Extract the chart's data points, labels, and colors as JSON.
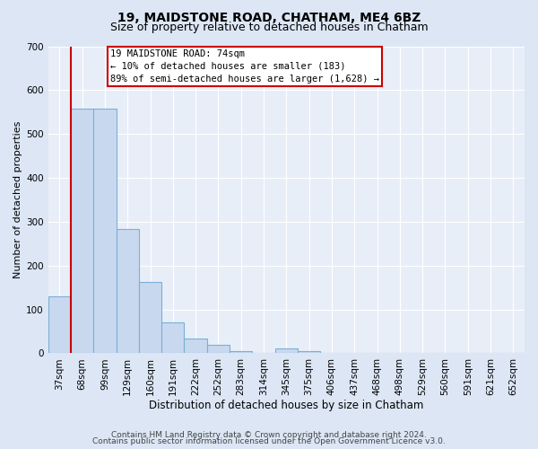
{
  "title": "19, MAIDSTONE ROAD, CHATHAM, ME4 6BZ",
  "subtitle": "Size of property relative to detached houses in Chatham",
  "xlabel": "Distribution of detached houses by size in Chatham",
  "ylabel": "Number of detached properties",
  "bar_labels": [
    "37sqm",
    "68sqm",
    "99sqm",
    "129sqm",
    "160sqm",
    "191sqm",
    "222sqm",
    "252sqm",
    "283sqm",
    "314sqm",
    "345sqm",
    "375sqm",
    "406sqm",
    "437sqm",
    "468sqm",
    "498sqm",
    "529sqm",
    "560sqm",
    "591sqm",
    "621sqm",
    "652sqm"
  ],
  "bar_values": [
    130,
    557,
    557,
    283,
    163,
    70,
    33,
    20,
    5,
    0,
    10,
    5,
    0,
    0,
    0,
    0,
    0,
    0,
    0,
    0,
    0
  ],
  "bar_color": "#c8d9ef",
  "bar_edge_color": "#7bafd4",
  "vline_x_index": 0.5,
  "vline_color": "#cc0000",
  "ylim": [
    0,
    700
  ],
  "yticks": [
    0,
    100,
    200,
    300,
    400,
    500,
    600,
    700
  ],
  "annotation_box_lines": [
    "19 MAIDSTONE ROAD: 74sqm",
    "← 10% of detached houses are smaller (183)",
    "89% of semi-detached houses are larger (1,628) →"
  ],
  "annotation_box_edge_color": "#cc0000",
  "background_color": "#dce6f5",
  "plot_bg_color": "#e8eef8",
  "grid_color": "#ffffff",
  "footer_line1": "Contains HM Land Registry data © Crown copyright and database right 2024.",
  "footer_line2": "Contains public sector information licensed under the Open Government Licence v3.0.",
  "title_fontsize": 10,
  "subtitle_fontsize": 9,
  "xlabel_fontsize": 8.5,
  "ylabel_fontsize": 8,
  "tick_fontsize": 7.5,
  "footer_fontsize": 6.5
}
